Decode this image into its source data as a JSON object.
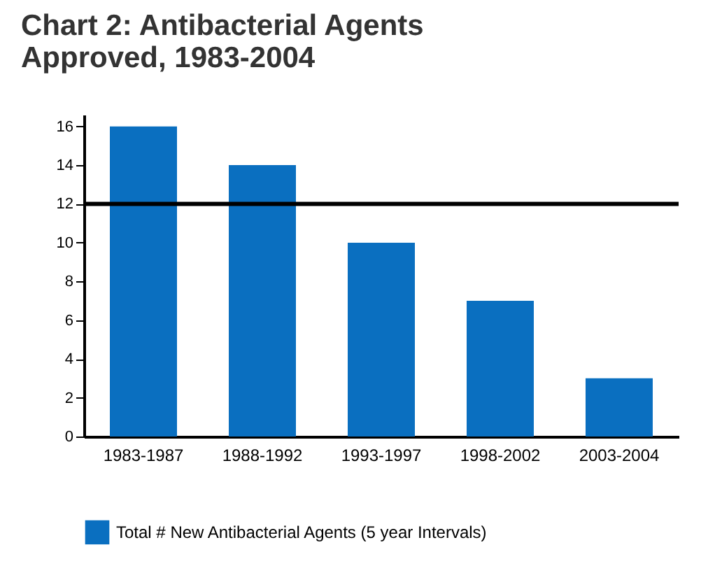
{
  "chart_data": {
    "type": "bar",
    "title": "Chart 2: Antibacterial Agents\nApproved, 1983-2004",
    "categories": [
      "1983-1987",
      "1988-1992",
      "1993-1997",
      "1998-2002",
      "2003-2004"
    ],
    "series": [
      {
        "name": "Total # New Antibacterial Agents (5 year Intervals)",
        "color": "#0a6fc0",
        "values": [
          16,
          14,
          10,
          7,
          3
        ]
      }
    ],
    "ylim": [
      0,
      16.6
    ],
    "yticks": [
      0,
      2,
      4,
      6,
      8,
      10,
      12,
      14,
      16
    ],
    "grid": false,
    "legend": "bottom",
    "ref_lines": [
      {
        "axis": "y",
        "value": 12,
        "color": "#000000"
      }
    ]
  }
}
